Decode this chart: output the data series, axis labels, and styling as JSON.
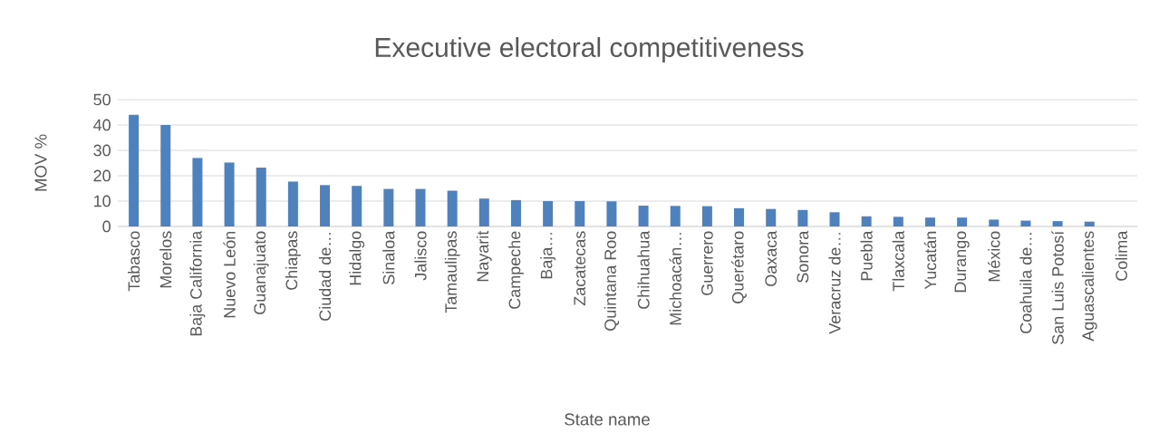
{
  "chart_data": {
    "type": "bar",
    "title": "Executive electoral competitiveness",
    "xlabel": "State name",
    "ylabel": "MOV %",
    "categories": [
      "Tabasco",
      "Morelos",
      "Baja California",
      "Nuevo León",
      "Guanajuato",
      "Chiapas",
      "Ciudad de…",
      "Hidalgo",
      "Sinaloa",
      "Jalisco",
      "Tamaulipas",
      "Nayarit",
      "Campeche",
      "Baja…",
      "Zacatecas",
      "Quintana Roo",
      "Chihuahua",
      "Michoacán…",
      "Guerrero",
      "Querétaro",
      "Oaxaca",
      "Sonora",
      "Veracruz de…",
      "Puebla",
      "Tlaxcala",
      "Yucatán",
      "Durango",
      "México",
      "Coahuila de…",
      "San Luis Potosí",
      "Aguascalientes",
      "Colima"
    ],
    "values": [
      44,
      40,
      27,
      25.2,
      23.2,
      17.7,
      16.3,
      16,
      14.8,
      14.8,
      14.1,
      11,
      10.4,
      10,
      10,
      9.9,
      8.2,
      8.1,
      8,
      7.2,
      6.9,
      6.5,
      5.6,
      4,
      3.8,
      3.5,
      3.5,
      2.7,
      2.3,
      2.1,
      1.9,
      0
    ],
    "color": "#4f81bd",
    "ylim": [
      0,
      50
    ],
    "yticks": [
      0,
      10,
      20,
      30,
      40,
      50
    ],
    "grid": "y"
  }
}
